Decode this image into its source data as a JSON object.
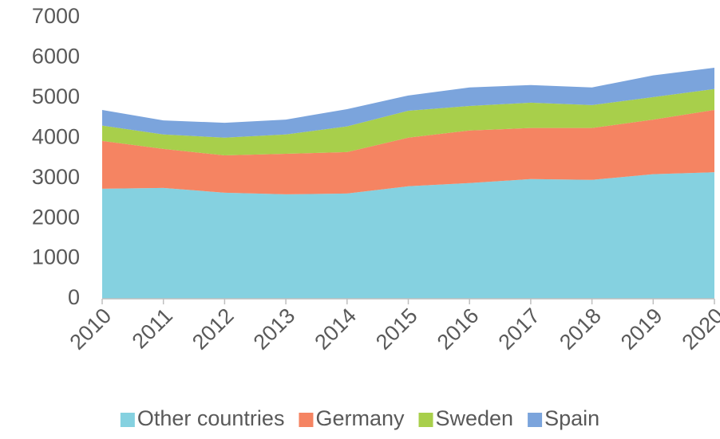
{
  "chart_data": {
    "type": "stacked_area",
    "categories": [
      "2010",
      "2011",
      "2012",
      "2013",
      "2014",
      "2015",
      "2016",
      "2017",
      "2018",
      "2019",
      "2020"
    ],
    "series": [
      {
        "name": "Other countries",
        "color": "#85d1e0",
        "values": [
          2740,
          2760,
          2640,
          2600,
          2620,
          2800,
          2880,
          2980,
          2960,
          3100,
          3150
        ]
      },
      {
        "name": "Germany",
        "color": "#f58462",
        "values": [
          1190,
          970,
          930,
          1010,
          1030,
          1210,
          1310,
          1270,
          1290,
          1360,
          1550
        ]
      },
      {
        "name": "Sweden",
        "color": "#a8cf4b",
        "values": [
          380,
          360,
          440,
          480,
          640,
          670,
          610,
          630,
          570,
          560,
          520
        ]
      },
      {
        "name": "Spain",
        "color": "#7ba4dc",
        "values": [
          390,
          350,
          370,
          370,
          430,
          380,
          460,
          440,
          440,
          540,
          530
        ]
      }
    ],
    "ylim": [
      0,
      7000
    ],
    "yticks": [
      0,
      1000,
      2000,
      3000,
      4000,
      5000,
      6000,
      7000
    ],
    "grid": false,
    "legend": "bottom"
  }
}
